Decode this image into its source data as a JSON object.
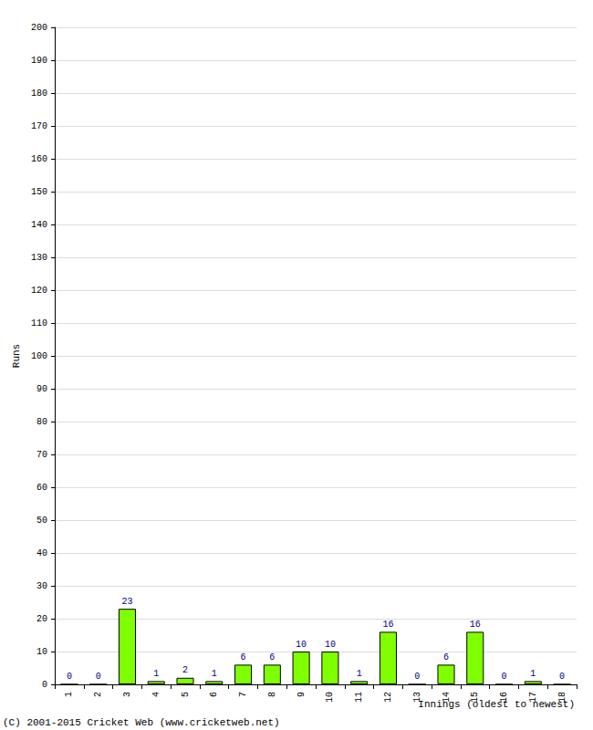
{
  "chart_data": {
    "type": "bar",
    "x_label": "Innings (oldest to newest)",
    "y_label": "Runs",
    "annotations": [
      "(C) 2001-2015 Cricket Web (www.cricketweb.net)"
    ],
    "categories": [
      "1",
      "2",
      "3",
      "4",
      "5",
      "6",
      "7",
      "8",
      "9",
      "10",
      "11",
      "12",
      "13",
      "14",
      "15",
      "16",
      "17",
      "18"
    ],
    "values": [
      0,
      0,
      23,
      1,
      2,
      1,
      6,
      6,
      10,
      10,
      1,
      16,
      0,
      6,
      16,
      0,
      1,
      0
    ],
    "color": "#80ff00",
    "ylim": [
      0,
      200
    ],
    "yticks": [
      0,
      10,
      20,
      30,
      40,
      50,
      60,
      70,
      80,
      90,
      100,
      110,
      120,
      130,
      140,
      150,
      160,
      170,
      180,
      190,
      200
    ],
    "grid": true,
    "data_labels": true
  }
}
